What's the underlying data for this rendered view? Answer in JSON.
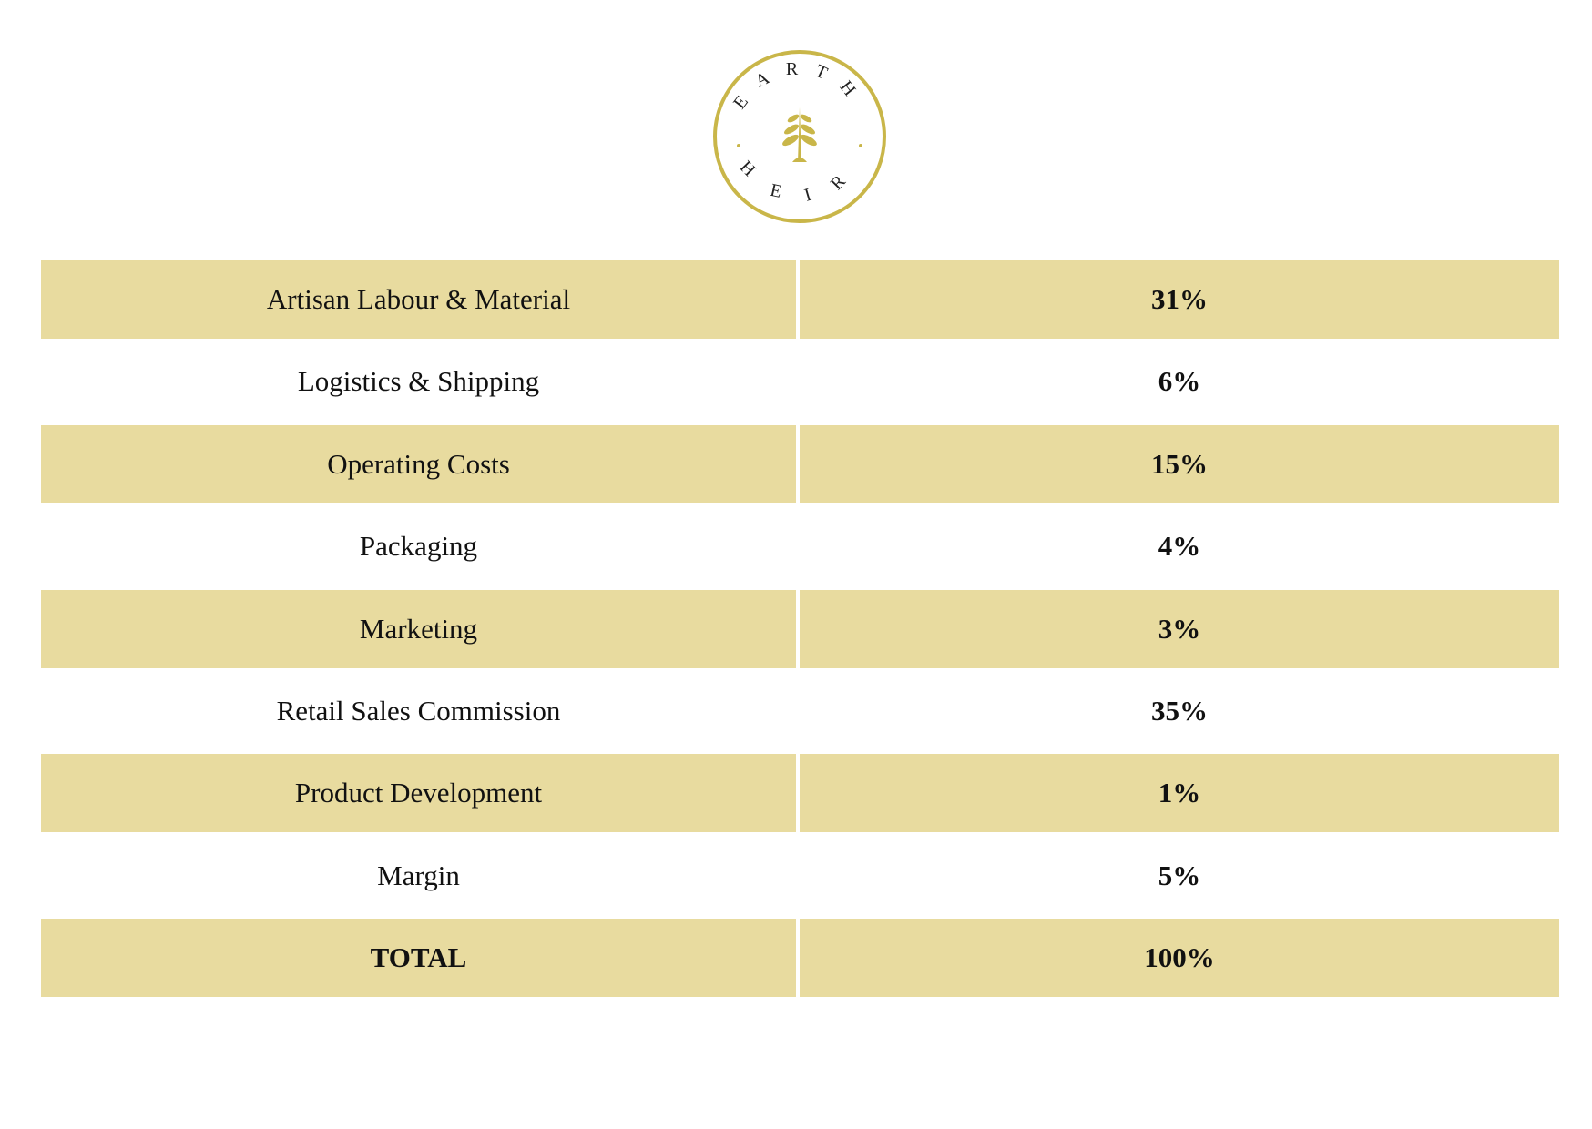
{
  "logo": {
    "top": "EARTH",
    "bottom": "HEIR"
  },
  "table": {
    "rows": [
      [
        "Artisan Labour & Material",
        "31%"
      ],
      [
        "Logistics & Shipping",
        "6%"
      ],
      [
        "Operating Costs",
        "15%"
      ],
      [
        "Packaging",
        "4%"
      ],
      [
        "Marketing",
        "3%"
      ],
      [
        "Retail Sales Commission",
        "35%"
      ],
      [
        "Product Development",
        "1%"
      ],
      [
        "Margin",
        "5%"
      ],
      [
        "TOTAL",
        "100%"
      ]
    ]
  }
}
